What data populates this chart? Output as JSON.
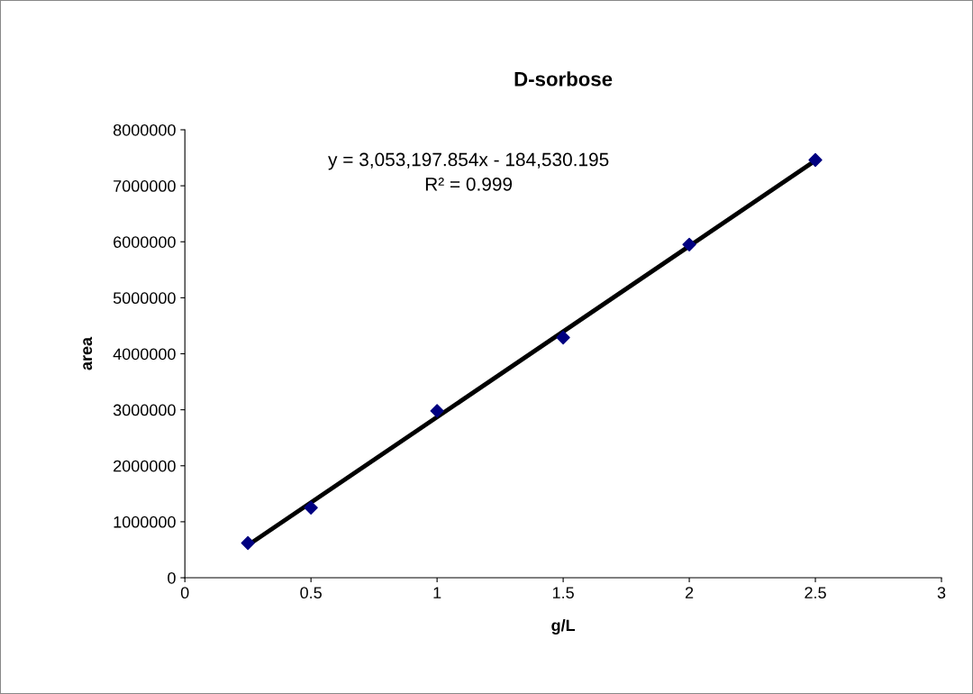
{
  "chart_data": {
    "type": "scatter",
    "title": "D-sorbose",
    "xlabel": "g/L",
    "ylabel": "area",
    "xlim": [
      0,
      3
    ],
    "xticks": [
      0,
      0.5,
      1,
      1.5,
      2,
      2.5,
      3
    ],
    "ylim": [
      0,
      8000000
    ],
    "yticks": [
      0,
      1000000,
      2000000,
      3000000,
      4000000,
      5000000,
      6000000,
      7000000,
      8000000
    ],
    "grid": false,
    "legend": false,
    "series": [
      {
        "marker": "diamond",
        "color": "#000080",
        "x": [
          0.25,
          0.5,
          1,
          1.5,
          2,
          2.5
        ],
        "values": [
          620000,
          1250000,
          2980000,
          4290000,
          5950000,
          7460000
        ]
      },
      {
        "type": "line",
        "marker": "none",
        "line_style": "solid",
        "color": "#000000",
        "x": [
          0.25,
          2.5
        ],
        "values": [
          580000,
          7450000
        ]
      }
    ],
    "annotations": [
      "y = 3,053,197.854x - 184,530.195",
      "R² = 0.999"
    ]
  }
}
